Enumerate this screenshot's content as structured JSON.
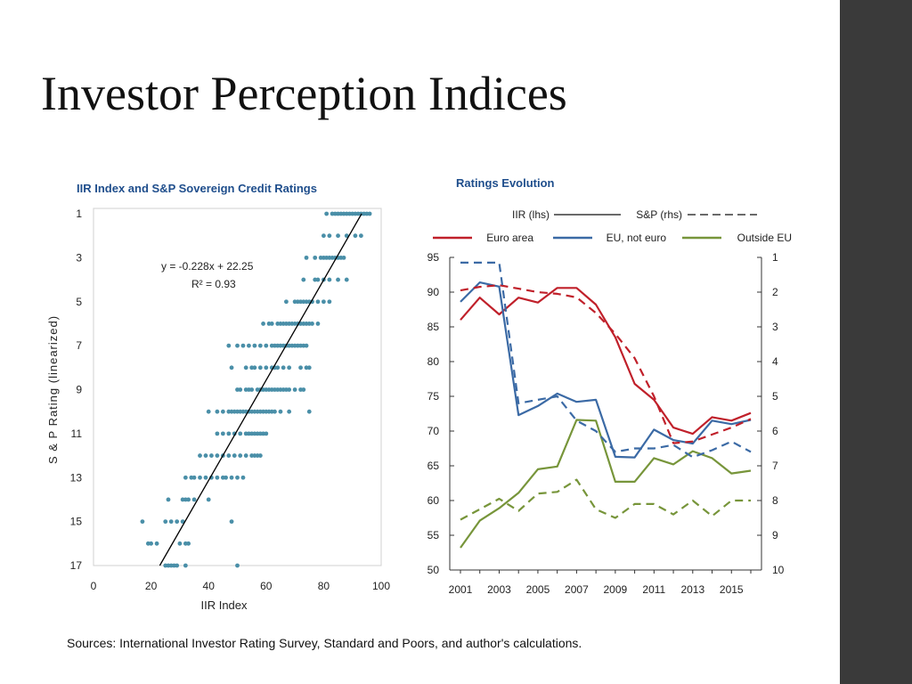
{
  "slide": {
    "title": "Investor Perception Indices",
    "source": "Sources: International Investor Rating Survey, Standard and Poors, and author's calculations."
  },
  "colors": {
    "scatter": "#4a8fa8",
    "euro": "#c0202a",
    "eu_not_euro": "#3b6aa5",
    "outside_eu": "#77953a",
    "sidebar": "#3a3a3a",
    "title_blue": "#1f4e8c"
  },
  "chart_data": [
    {
      "type": "scatter",
      "title": "IIR  Index and S&P Sovereign Credit Ratings",
      "xlabel": "IIR Index",
      "ylabel": "S & P Rating (linearized)",
      "xlim": [
        0,
        100
      ],
      "ylim": [
        17,
        1
      ],
      "x_ticks": [
        "0",
        "20",
        "40",
        "60",
        "80",
        "100"
      ],
      "y_ticks": [
        "1",
        "3",
        "5",
        "7",
        "9",
        "11",
        "13",
        "15",
        "17"
      ],
      "fit": {
        "equation": "y = -0.228x + 22.25",
        "r2": "R² = 0.93",
        "slope": -0.228,
        "intercept": 22.25
      },
      "clusters": [
        {
          "y": 1,
          "xs": [
            81,
            83,
            84,
            85,
            86,
            87,
            88,
            89,
            90,
            91,
            92,
            93,
            94,
            95,
            96
          ]
        },
        {
          "y": 2,
          "xs": [
            80,
            82,
            85,
            88,
            91,
            93
          ]
        },
        {
          "y": 3,
          "xs": [
            74,
            77,
            79,
            80,
            81,
            82,
            83,
            84,
            85,
            86,
            87
          ]
        },
        {
          "y": 4,
          "xs": [
            73,
            77,
            78,
            80,
            82,
            85,
            88
          ]
        },
        {
          "y": 5,
          "xs": [
            67,
            70,
            71,
            72,
            73,
            74,
            75,
            76,
            78,
            80,
            82
          ]
        },
        {
          "y": 6,
          "xs": [
            59,
            61,
            62,
            64,
            65,
            66,
            67,
            68,
            69,
            70,
            71,
            72,
            73,
            74,
            75,
            76,
            78
          ]
        },
        {
          "y": 7,
          "xs": [
            47,
            50,
            52,
            54,
            56,
            58,
            60,
            62,
            63,
            64,
            65,
            66,
            67,
            68,
            69,
            70,
            71,
            72,
            73,
            74
          ]
        },
        {
          "y": 8,
          "xs": [
            48,
            53,
            55,
            56,
            58,
            60,
            62,
            63,
            64,
            66,
            68,
            72,
            74,
            75
          ]
        },
        {
          "y": 9,
          "xs": [
            50,
            51,
            53,
            54,
            55,
            57,
            58,
            59,
            60,
            61,
            62,
            63,
            64,
            65,
            66,
            67,
            68,
            70,
            72,
            73
          ]
        },
        {
          "y": 10,
          "xs": [
            40,
            43,
            45,
            47,
            48,
            49,
            50,
            51,
            52,
            53,
            54,
            55,
            56,
            57,
            58,
            59,
            60,
            61,
            62,
            63,
            65,
            68,
            75
          ]
        },
        {
          "y": 11,
          "xs": [
            43,
            45,
            47,
            49,
            51,
            53,
            54,
            55,
            56,
            57,
            58,
            59,
            60
          ]
        },
        {
          "y": 12,
          "xs": [
            37,
            39,
            41,
            43,
            45,
            47,
            49,
            51,
            53,
            55,
            56,
            57,
            58
          ]
        },
        {
          "y": 13,
          "xs": [
            32,
            34,
            35,
            37,
            39,
            41,
            43,
            45,
            46,
            48,
            50,
            52
          ]
        },
        {
          "y": 14,
          "xs": [
            26,
            31,
            32,
            33,
            35,
            40
          ]
        },
        {
          "y": 15,
          "xs": [
            17,
            25,
            27,
            29,
            31,
            48
          ]
        },
        {
          "y": 16,
          "xs": [
            19,
            20,
            22,
            30,
            32,
            33
          ]
        },
        {
          "y": 17,
          "xs": [
            25,
            26,
            27,
            28,
            29,
            32,
            50
          ]
        }
      ]
    },
    {
      "type": "line",
      "title": "Ratings Evolution",
      "x": [
        2001,
        2002,
        2003,
        2004,
        2005,
        2006,
        2007,
        2008,
        2009,
        2010,
        2011,
        2012,
        2013,
        2014,
        2015,
        2016
      ],
      "x_ticks": [
        "2001",
        "2003",
        "2005",
        "2007",
        "2009",
        "2011",
        "2013",
        "2015"
      ],
      "ylim_left": [
        50,
        95
      ],
      "y_ticks_left": [
        "50",
        "55",
        "60",
        "65",
        "70",
        "75",
        "80",
        "85",
        "90",
        "95"
      ],
      "ylim_right": [
        10,
        1
      ],
      "y_ticks_right": [
        "1",
        "2",
        "3",
        "4",
        "5",
        "6",
        "7",
        "8",
        "9",
        "10"
      ],
      "legend_style": [
        {
          "label": "IIR (lhs)",
          "dash": "solid"
        },
        {
          "label": "S&P (rhs)",
          "dash": "dashed"
        }
      ],
      "legend_groups": [
        {
          "label": "Euro area",
          "color": "#c0202a"
        },
        {
          "label": "EU, not euro",
          "color": "#3b6aa5"
        },
        {
          "label": "Outside EU",
          "color": "#77953a"
        }
      ],
      "series": [
        {
          "name": "Euro area IIR",
          "axis": "left",
          "dash": "solid",
          "color": "#c0202a",
          "values": [
            86,
            89.2,
            86.8,
            89.2,
            88.5,
            90.6,
            90.6,
            88.2,
            83.5,
            76.8,
            74.5,
            70.5,
            69.6,
            72,
            71.5,
            72.6
          ]
        },
        {
          "name": "EU, not euro IIR",
          "axis": "left",
          "dash": "solid",
          "color": "#3b6aa5",
          "values": [
            88.6,
            91.4,
            90.8,
            72.3,
            73.6,
            75.4,
            74.2,
            74.5,
            66.3,
            66.2,
            70.2,
            68.7,
            68.2,
            71.5,
            71,
            71.6
          ]
        },
        {
          "name": "Outside EU IIR",
          "axis": "left",
          "dash": "solid",
          "color": "#77953a",
          "values": [
            53.2,
            57.1,
            58.9,
            61.1,
            64.5,
            64.9,
            71.6,
            71.5,
            62.7,
            62.7,
            66.1,
            65.2,
            67.1,
            66.1,
            63.9,
            64.3
          ]
        },
        {
          "name": "Euro area S&P",
          "axis": "right",
          "dash": "dashed",
          "color": "#c0202a",
          "values": [
            1.95,
            1.85,
            1.8,
            1.9,
            2.0,
            2.05,
            2.15,
            2.6,
            3.2,
            3.9,
            5.0,
            6.35,
            6.3,
            6.1,
            5.9,
            5.65
          ]
        },
        {
          "name": "EU, not euro S&P",
          "axis": "right",
          "dash": "dashed",
          "color": "#3b6aa5",
          "values": [
            1.15,
            1.15,
            1.15,
            5.2,
            5.1,
            5.0,
            5.7,
            6.0,
            6.6,
            6.5,
            6.5,
            6.4,
            6.75,
            6.55,
            6.3,
            6.6
          ]
        },
        {
          "name": "Outside EU S&P",
          "axis": "right",
          "dash": "dashed",
          "color": "#77953a",
          "values": [
            8.55,
            8.25,
            7.95,
            8.3,
            7.8,
            7.75,
            7.4,
            8.25,
            8.5,
            8.1,
            8.1,
            8.4,
            8.0,
            8.45,
            8.0,
            8.0
          ]
        }
      ]
    }
  ]
}
